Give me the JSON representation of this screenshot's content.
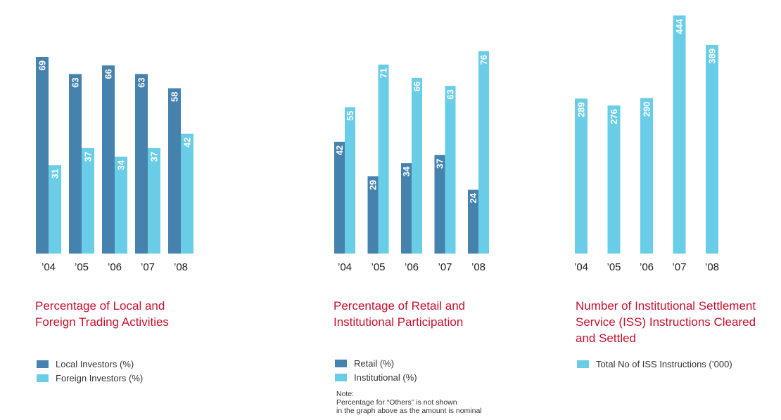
{
  "colors": {
    "dark": "#4682ae",
    "light": "#6acde8",
    "title": "#c8102e",
    "text": "#222222"
  },
  "chart_data": [
    {
      "type": "bar",
      "title_lines": [
        "Percentage of Local and",
        "Foreign Trading Activities"
      ],
      "categories": [
        "’04",
        "’05",
        "’06",
        "’07",
        "’08"
      ],
      "ylim": [
        0,
        69
      ],
      "series": [
        {
          "name": "Local Investors (%)",
          "values": [
            69,
            63,
            66,
            63,
            58
          ],
          "color": "#4682ae"
        },
        {
          "name": "Foreign Investors (%)",
          "values": [
            31,
            37,
            34,
            37,
            42
          ],
          "color": "#6acde8"
        }
      ]
    },
    {
      "type": "bar",
      "title_lines": [
        "Percentage of Retail and",
        "Institutional Participation"
      ],
      "categories": [
        "’04",
        "’05",
        "’06",
        "’07",
        "’08"
      ],
      "ylim": [
        0,
        76
      ],
      "series": [
        {
          "name": "Retail (%)",
          "values": [
            42,
            29,
            34,
            37,
            24
          ],
          "color": "#4682ae"
        },
        {
          "name": "Institutional (%)",
          "values": [
            55,
            71,
            66,
            63,
            76
          ],
          "color": "#6acde8"
        }
      ],
      "note_lines": [
        "Note:",
        "Percentage for “Others” is not shown",
        "in the graph above as the amount is nominal"
      ]
    },
    {
      "type": "bar",
      "title_lines": [
        "Number of Institutional Settlement",
        "Service (ISS) Instructions Cleared",
        "and Settled"
      ],
      "categories": [
        "’04",
        "’05",
        "’06",
        "’07",
        "’08"
      ],
      "ylim": [
        0,
        444
      ],
      "series": [
        {
          "name": "Total No of ISS Instructions (’000)",
          "values": [
            289,
            276,
            290,
            444,
            389
          ],
          "color": "#6acde8"
        }
      ]
    }
  ]
}
